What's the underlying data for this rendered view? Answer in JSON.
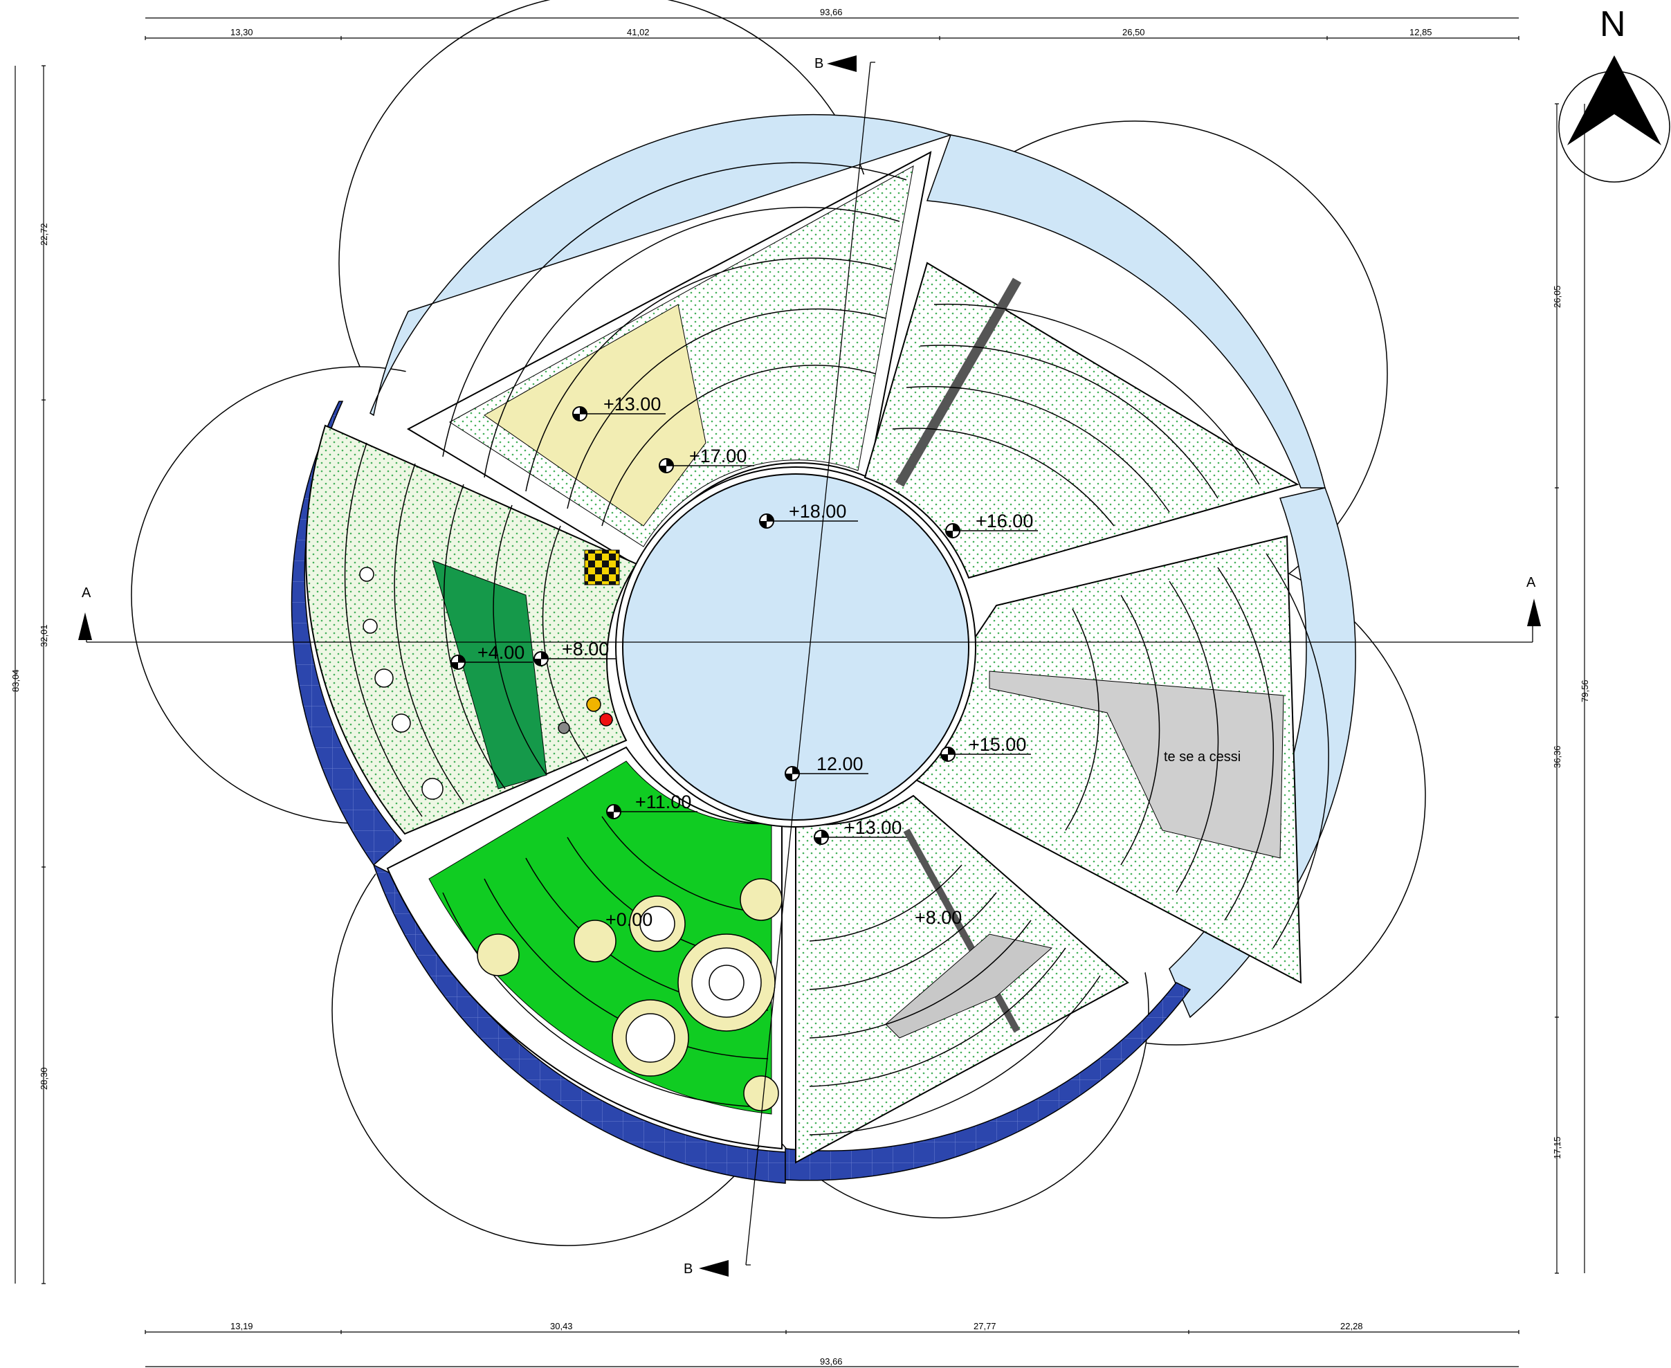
{
  "compass": {
    "label": "N",
    "icon": "north-arrow-icon"
  },
  "dimensions": {
    "top_total": "93,66",
    "top_segments": [
      "13,30",
      "41,02",
      "26,50",
      "12,85"
    ],
    "bottom_segments": [
      "13,19",
      "30,43",
      "27,77",
      "22,28"
    ],
    "bottom_total": "93,66",
    "left_total": "83,04",
    "left_segments": [
      "22,72",
      "32,01",
      "28,30"
    ],
    "right_total": "79,56",
    "right_segments": [
      "26,05",
      "36,36",
      "17,15"
    ]
  },
  "sections": {
    "a_left": "A",
    "a_right": "A",
    "b_top": "B",
    "b_bottom": "B"
  },
  "levels": {
    "center": "+18.00",
    "north": "+17.00",
    "northwest": "+13.00",
    "northeast": "+16.00",
    "east": "+15.00",
    "center_south": "12.00",
    "southeast": "+13.00",
    "southeast_inner": "+8.00",
    "south": "+11.00",
    "south_inner": "+0.00",
    "west_outer": "+4.00",
    "west": "+8.00"
  },
  "text_labels": {
    "east_partial": "te   se a  cessi"
  },
  "colors": {
    "water": "#cfe6f7",
    "pool_tiles": "#2c46ad",
    "lawn": "#10cc22",
    "dark_green": "#15994a",
    "sand": "#f2edb3",
    "dotted_green": "#9ccc88",
    "paving": "#c8c8c8",
    "yellow_plaza": "#e8b53a"
  }
}
